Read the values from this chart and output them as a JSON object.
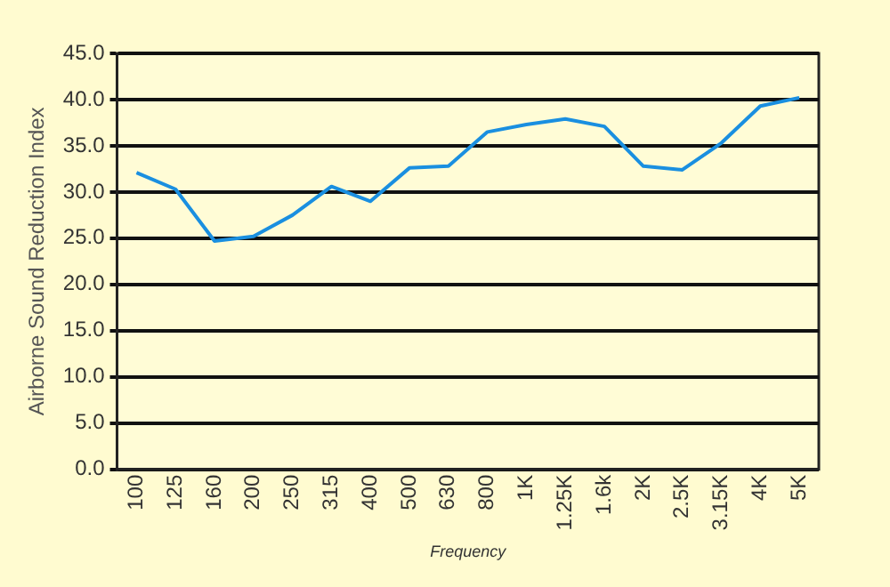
{
  "chart_data": {
    "type": "line",
    "xlabel": "Frequency",
    "ylabel": "Airborne Sound Reduction Index",
    "categories": [
      "100",
      "125",
      "160",
      "200",
      "250",
      "315",
      "400",
      "500",
      "630",
      "800",
      "1K",
      "1.25K",
      "1.6k",
      "2K",
      "2.5K",
      "3.15K",
      "4K",
      "5K"
    ],
    "series": [
      {
        "color": "#1a8fe0",
        "values": [
          32.1,
          30.3,
          24.7,
          25.2,
          27.5,
          30.6,
          29.0,
          32.6,
          32.8,
          36.5,
          37.3,
          37.9,
          37.1,
          32.8,
          32.4,
          35.3,
          39.3,
          40.2
        ]
      }
    ],
    "ylim": [
      0,
      45
    ],
    "yticks": [
      {
        "value": 0,
        "label": "0.0"
      },
      {
        "value": 5,
        "label": "5.0"
      },
      {
        "value": 10,
        "label": "10.0"
      },
      {
        "value": 15,
        "label": "15.0"
      },
      {
        "value": 20,
        "label": "20.0"
      },
      {
        "value": 25,
        "label": "25.0"
      },
      {
        "value": 30,
        "label": "30.0"
      },
      {
        "value": 35,
        "label": "35.0"
      },
      {
        "value": 40,
        "label": "40.0"
      },
      {
        "value": 45,
        "label": "45.0"
      }
    ],
    "grid": "y",
    "legend": false,
    "marker": "none",
    "line_style": "solid"
  }
}
